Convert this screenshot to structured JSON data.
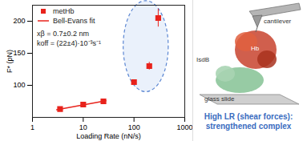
{
  "chart_data": {
    "type": "scatter",
    "x_label": "Loading Rate (nN/s)",
    "y_label": "F* (pN)",
    "log": "x",
    "xlim": [
      1,
      1000
    ],
    "xticks": [
      1,
      10,
      100,
      1000
    ],
    "ylim": [
      50,
      225
    ],
    "yticks": [
      100,
      150,
      200
    ],
    "legend": "top-left",
    "annotations": [
      "xβ = 0.7±0.2 nm",
      "koff = (22±4)·10⁻³s⁻¹"
    ],
    "series": [
      {
        "name": "metHb",
        "type": "scatter",
        "color": "#e8231c",
        "marker": "square",
        "x": [
          3.5,
          10,
          25,
          100,
          200,
          300
        ],
        "values": [
          63,
          70,
          75,
          105,
          130,
          205
        ],
        "errors": [
          2,
          2,
          2,
          3,
          6,
          14
        ]
      },
      {
        "name": "Bell-Evans fit",
        "type": "line",
        "color": "#e8231c",
        "line_style": "solid",
        "x": [
          3,
          28
        ],
        "values": [
          62,
          76
        ]
      }
    ]
  },
  "illustration": {
    "labels": {
      "cantilever": "cantilever",
      "IsdB": "IsdB",
      "Hb": "Hb",
      "glass": "glass slide"
    },
    "caption": "High LR (shear forces): strengthened complex"
  }
}
